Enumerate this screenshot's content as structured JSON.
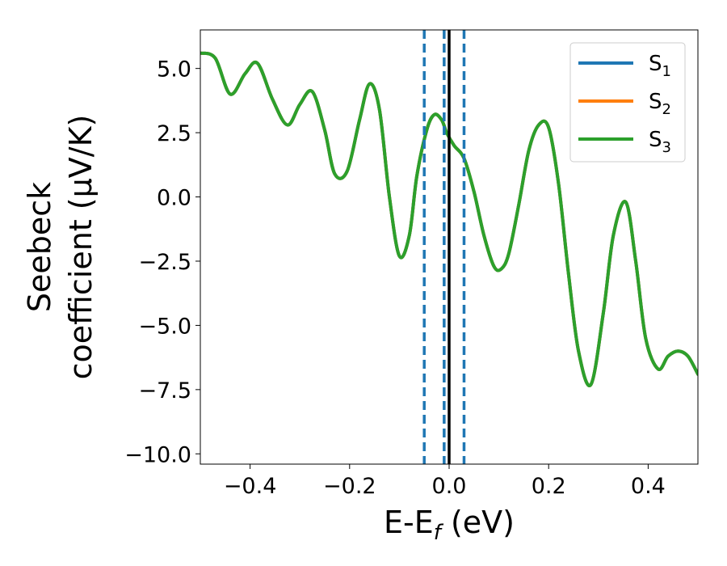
{
  "chart_data": {
    "type": "line",
    "xlabel": "E-E",
    "xlabel_sub": "f",
    "xlabel_unit": " (eV)",
    "ylabel_line1": "Seebeck",
    "ylabel_line2": "coefficient  (μV/K)",
    "xlim": [
      -0.5,
      0.5
    ],
    "ylim": [
      -10.4,
      6.5
    ],
    "xticks": [
      -0.4,
      -0.2,
      0.0,
      0.2,
      0.4
    ],
    "xtick_labels": [
      "−0.4",
      "−0.2",
      "0.0",
      "0.2",
      "0.4"
    ],
    "yticks": [
      5.0,
      2.5,
      0.0,
      -2.5,
      -5.0,
      -7.5,
      -10.0
    ],
    "ytick_labels": [
      "5.0",
      "2.5",
      "0.0",
      "−2.5",
      "−5.0",
      "−7.5",
      "−10.0"
    ],
    "grid": false,
    "legend_position": "top-right",
    "vlines": [
      {
        "x": -0.05,
        "style": "dashed",
        "color": "#1f77b4"
      },
      {
        "x": -0.01,
        "style": "dashed",
        "color": "#1f77b4"
      },
      {
        "x": 0.03,
        "style": "dashed",
        "color": "#1f77b4"
      },
      {
        "x": 0.0,
        "style": "solid",
        "color": "#000000"
      }
    ],
    "x": [
      -0.5,
      -0.47,
      -0.44,
      -0.41,
      -0.385,
      -0.355,
      -0.325,
      -0.3,
      -0.275,
      -0.25,
      -0.23,
      -0.205,
      -0.18,
      -0.16,
      -0.14,
      -0.12,
      -0.1,
      -0.08,
      -0.065,
      -0.045,
      -0.03,
      -0.015,
      -0.005,
      0.01,
      0.03,
      0.05,
      0.07,
      0.09,
      0.105,
      0.12,
      0.14,
      0.16,
      0.18,
      0.2,
      0.22,
      0.24,
      0.26,
      0.285,
      0.31,
      0.33,
      0.355,
      0.375,
      0.395,
      0.42,
      0.44,
      0.46,
      0.48,
      0.5
    ],
    "series": [
      {
        "name": "S",
        "name_sub": "1",
        "color": "#1f77b4",
        "values": [
          5.6,
          5.4,
          4.0,
          4.8,
          5.2,
          3.8,
          2.8,
          3.6,
          4.1,
          2.6,
          0.9,
          1.0,
          3.0,
          4.4,
          3.4,
          0.0,
          -2.3,
          -1.5,
          0.8,
          2.6,
          3.2,
          3.0,
          2.5,
          2.0,
          1.5,
          0.2,
          -1.5,
          -2.7,
          -2.8,
          -2.2,
          -0.3,
          1.8,
          2.8,
          2.7,
          0.5,
          -3.0,
          -6.0,
          -7.3,
          -4.5,
          -1.5,
          -0.2,
          -2.5,
          -5.5,
          -6.7,
          -6.2,
          -6.0,
          -6.2,
          -6.9
        ]
      },
      {
        "name": "S",
        "name_sub": "2",
        "color": "#ff7f0e",
        "values": [
          5.6,
          5.4,
          4.0,
          4.8,
          5.2,
          3.8,
          2.8,
          3.6,
          4.1,
          2.6,
          0.9,
          1.0,
          3.0,
          4.4,
          3.4,
          0.0,
          -2.3,
          -1.5,
          0.8,
          2.6,
          3.2,
          3.0,
          2.5,
          2.0,
          1.5,
          0.2,
          -1.5,
          -2.7,
          -2.8,
          -2.2,
          -0.3,
          1.8,
          2.8,
          2.7,
          0.5,
          -3.0,
          -6.0,
          -7.3,
          -4.5,
          -1.5,
          -0.2,
          -2.5,
          -5.5,
          -6.7,
          -6.2,
          -6.0,
          -6.2,
          -6.9
        ]
      },
      {
        "name": "S",
        "name_sub": "3",
        "color": "#2ca02c",
        "values": [
          5.6,
          5.4,
          4.0,
          4.8,
          5.2,
          3.8,
          2.8,
          3.6,
          4.1,
          2.6,
          0.9,
          1.0,
          3.0,
          4.4,
          3.4,
          0.0,
          -2.3,
          -1.5,
          0.8,
          2.6,
          3.2,
          3.0,
          2.5,
          2.0,
          1.5,
          0.2,
          -1.5,
          -2.7,
          -2.8,
          -2.2,
          -0.3,
          1.8,
          2.8,
          2.7,
          0.5,
          -3.0,
          -6.0,
          -7.3,
          -4.5,
          -1.5,
          -0.2,
          -2.5,
          -5.5,
          -6.7,
          -6.2,
          -6.0,
          -6.2,
          -6.9
        ]
      }
    ]
  }
}
